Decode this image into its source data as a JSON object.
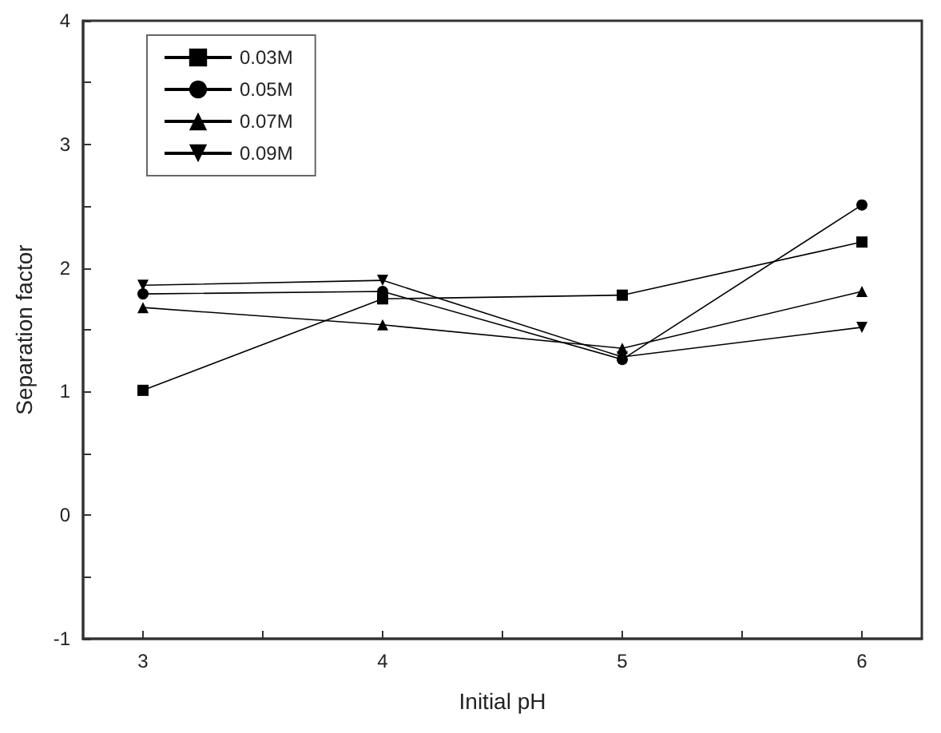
{
  "chart_data": {
    "type": "line",
    "xlabel": "Initial pH",
    "ylabel": "Separation factor",
    "x": [
      3,
      4,
      5,
      6
    ],
    "series": [
      {
        "name": "0.03M",
        "color": "#000000",
        "marker": "square",
        "values": [
          1.01,
          1.75,
          1.78,
          2.21
        ]
      },
      {
        "name": "0.05M",
        "color": "#000000",
        "marker": "circle",
        "values": [
          1.79,
          1.81,
          1.26,
          2.51
        ]
      },
      {
        "name": "0.07M",
        "color": "#000000",
        "marker": "triangle",
        "values": [
          1.68,
          1.54,
          1.35,
          1.81
        ]
      },
      {
        "name": "0.09M",
        "color": "#000000",
        "marker": "triangle-down",
        "values": [
          1.86,
          1.9,
          1.28,
          1.52
        ]
      }
    ],
    "xlim": [
      2.75,
      6.25
    ],
    "xticks": [
      3,
      {
        "value": 3.5,
        "label": null
      },
      4,
      {
        "value": 4.5,
        "label": null
      },
      5,
      {
        "value": 5.5,
        "label": null
      },
      6
    ],
    "ylim": [
      -1,
      4
    ],
    "yticks": [
      -1,
      {
        "value": -0.5,
        "label": null
      },
      0,
      {
        "value": 0.5,
        "label": null
      },
      1,
      {
        "value": 1.5,
        "label": null
      },
      2,
      {
        "value": 2.5,
        "label": null
      },
      3,
      {
        "value": 3.5,
        "label": null
      },
      4
    ],
    "legend": "top left",
    "line_style": "solid"
  }
}
